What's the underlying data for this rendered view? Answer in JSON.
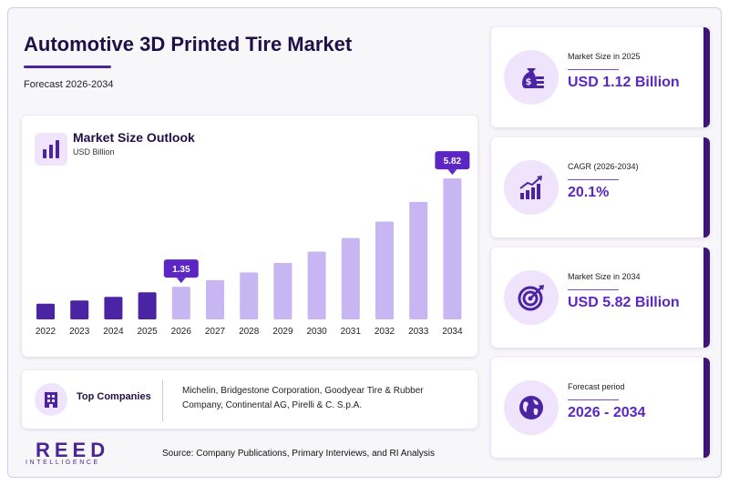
{
  "header": {
    "title": "Automotive 3D Printed Tire Market",
    "subtitle": "Forecast 2026-2034"
  },
  "chart_title": "Market Size Outlook",
  "chart_unit": "USD Billion",
  "chart_data": {
    "type": "bar",
    "categories": [
      "2022",
      "2023",
      "2024",
      "2025",
      "2026",
      "2027",
      "2028",
      "2029",
      "2030",
      "2031",
      "2032",
      "2033",
      "2034"
    ],
    "values": [
      0.65,
      0.78,
      0.93,
      1.12,
      1.35,
      1.62,
      1.94,
      2.33,
      2.8,
      3.36,
      4.04,
      4.85,
      5.82
    ],
    "data_labels": [
      {
        "index": 4,
        "text": "1.35"
      },
      {
        "index": 12,
        "text": "5.82"
      }
    ],
    "historical_color": "#4b24a3",
    "forecast_color": "#c7b6f1",
    "label_color": "#5b26c4",
    "ylim": [
      0,
      6.2
    ],
    "grid": false
  },
  "companies": {
    "label": "Top Companies",
    "text": "Michelin, Bridgestone Corporation, Goodyear Tire & Rubber Company, Continental AG, Pirelli & C. S.p.A."
  },
  "kpis": [
    {
      "label": "Market Size in 2025",
      "value": "USD 1.12 Billion",
      "icon": "money-bag-icon"
    },
    {
      "label": "CAGR (2026-2034)",
      "value": "20.1%",
      "icon": "growth-chart-icon"
    },
    {
      "label": "Market Size in 2034",
      "value": "USD 5.82 Billion",
      "icon": "target-icon"
    },
    {
      "label": "Forecast period",
      "value": "2026 - 2034",
      "icon": "globe-icon"
    }
  ],
  "brand": {
    "name": "REED",
    "tagline": "INTELLIGENCE"
  },
  "source": "Source: Company Publications, Primary Interviews, and RI Analysis",
  "colors": {
    "accent": "#5b26c4",
    "dark": "#1f1147",
    "kpi_edge": "#3d1576",
    "icon_bg": "#efe4fb"
  }
}
